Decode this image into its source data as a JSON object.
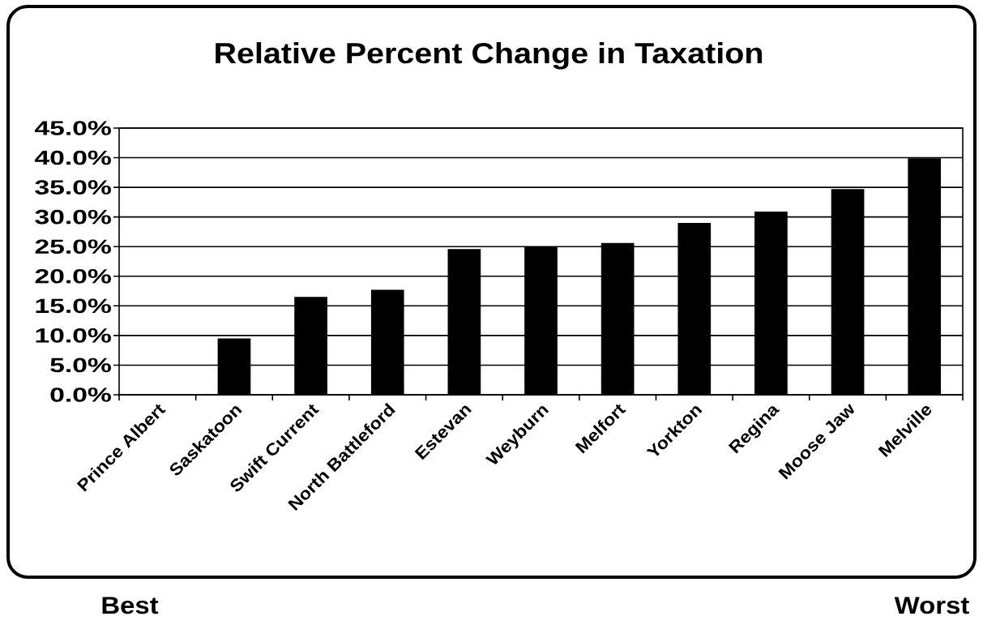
{
  "chart_data": {
    "type": "bar",
    "title": "Relative Percent Change in Taxation",
    "categories": [
      "Prince Albert",
      "Saskatoon",
      "Swift Current",
      "North Battleford",
      "Estevan",
      "Weyburn",
      "Melfort",
      "Yorkton",
      "Regina",
      "Moose Jaw",
      "Melville"
    ],
    "values": [
      0,
      9.5,
      16.5,
      17.7,
      24.6,
      25.0,
      25.6,
      29.0,
      30.9,
      34.7,
      39.9
    ],
    "color": "#000000",
    "ylim": [
      0,
      45
    ],
    "yticks": [
      {
        "value": 0,
        "label": "0.0%"
      },
      {
        "value": 5,
        "label": "5.0%"
      },
      {
        "value": 10,
        "label": "10.0%"
      },
      {
        "value": 15,
        "label": "15.0%"
      },
      {
        "value": 20,
        "label": "20.0%"
      },
      {
        "value": 25,
        "label": "25.0%"
      },
      {
        "value": 30,
        "label": "30.0%"
      },
      {
        "value": 35,
        "label": "35.0%"
      },
      {
        "value": 40,
        "label": "40.0%"
      },
      {
        "value": 45,
        "label": "45.0%"
      }
    ],
    "grid": "y",
    "annotations": [
      "Best",
      "Worst"
    ]
  }
}
